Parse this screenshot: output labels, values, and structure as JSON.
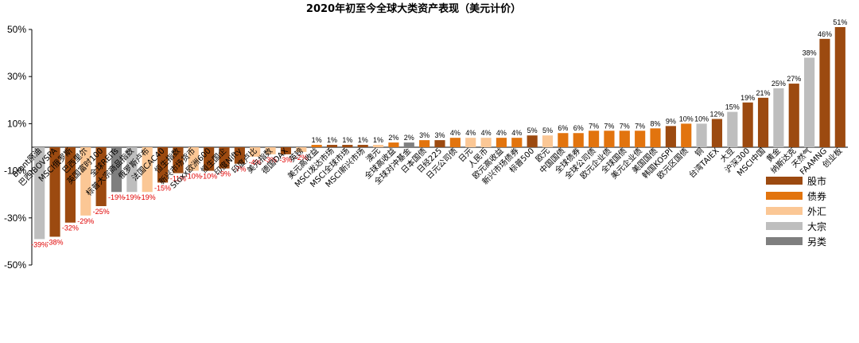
{
  "chart_data": {
    "type": "bar",
    "title": "2020年初至今全球大类资产表现（美元计价）",
    "ylim": [
      -50,
      50
    ],
    "yticks": [
      "50%",
      "30%",
      "10%",
      "-10%",
      "-30%",
      "-50%"
    ],
    "ytick_values": [
      50,
      30,
      10,
      -10,
      -30,
      -50
    ],
    "categories": [
      "Brent原油",
      "巴西IBOVSPA",
      "MSCI俄罗斯",
      "巴西里尔",
      "英国富时100",
      "全球REITs",
      "标普大宗商品指数",
      "俄罗斯卢布",
      "法国CAC40",
      "恒生指数",
      "新兴市场货币",
      "Stoxx欧洲600",
      "恒生国企",
      "印度Nifty",
      "印度卢比",
      "美元指数",
      "德国DAX",
      "英镑",
      "美元高收益",
      "MSCI发达市场",
      "MSCI全球市场",
      "MSCI新兴市场",
      "澳元",
      "全球高收益",
      "全球对冲基金",
      "日本国债",
      "日经225",
      "日元公司债",
      "日元",
      "人民币",
      "欧元高收益",
      "新兴市场债券",
      "标普500",
      "欧元",
      "中国国债",
      "全球债券",
      "全球公司债",
      "欧元企业债",
      "全球国债",
      "美元企业债",
      "美国国债",
      "韩国KOSPI",
      "欧元区国债",
      "铜",
      "台湾TAIEX",
      "大豆",
      "沪深300",
      "MSCI中国",
      "黄金",
      "纳斯达克",
      "天然气",
      "FAAMNG",
      "创业板"
    ],
    "values": [
      -39,
      -38,
      -32,
      -29,
      -25,
      -19,
      -19,
      -19,
      -15,
      -11,
      -10,
      -10,
      -9,
      -7,
      -4,
      -3,
      -3,
      -2,
      1,
      1,
      1,
      1,
      1,
      2,
      2,
      3,
      3,
      4,
      4,
      4,
      4,
      4,
      5,
      5,
      6,
      6,
      7,
      7,
      7,
      7,
      8,
      9,
      10,
      10,
      12,
      15,
      19,
      21,
      25,
      27,
      38,
      46,
      51
    ],
    "data_labels": [
      "-39%",
      "-38%",
      "-32%",
      "-29%",
      "-25%",
      "-19%",
      "-19%",
      "-19%",
      "-15%",
      "-11%",
      "-10%",
      "-10%",
      "-9%",
      "-7%",
      "-4%",
      "-3%",
      "-3%",
      "-2%",
      "1%",
      "1%",
      "1%",
      "1%",
      "1%",
      "2%",
      "2%",
      "3%",
      "3%",
      "4%",
      "4%",
      "4%",
      "4%",
      "4%",
      "5%",
      "5%",
      "6%",
      "6%",
      "7%",
      "7%",
      "7%",
      "7%",
      "8%",
      "9%",
      "10%",
      "10%",
      "12%",
      "15%",
      "19%",
      "21%",
      "25%",
      "27%",
      "38%",
      "46%",
      "51%"
    ],
    "asset_class": [
      "大宗",
      "股市",
      "股市",
      "外汇",
      "股市",
      "另类",
      "大宗",
      "外汇",
      "股市",
      "股市",
      "外汇",
      "股市",
      "股市",
      "股市",
      "外汇",
      "外汇",
      "股市",
      "外汇",
      "债券",
      "股市",
      "股市",
      "股市",
      "外汇",
      "债券",
      "另类",
      "债券",
      "股市",
      "债券",
      "外汇",
      "外汇",
      "债券",
      "债券",
      "股市",
      "外汇",
      "债券",
      "债券",
      "债券",
      "债券",
      "债券",
      "债券",
      "债券",
      "股市",
      "债券",
      "大宗",
      "股市",
      "大宗",
      "股市",
      "股市",
      "大宗",
      "股市",
      "大宗",
      "股市",
      "股市"
    ],
    "legend": [
      {
        "name": "股市",
        "color": "#9C4A10"
      },
      {
        "name": "债券",
        "color": "#E2740E"
      },
      {
        "name": "外汇",
        "color": "#FBC795"
      },
      {
        "name": "大宗",
        "color": "#BEBEBE"
      },
      {
        "name": "另类",
        "color": "#7F7F7F"
      }
    ],
    "legend_position": "right",
    "negative_label_color": "#E00000",
    "positive_label_color": "#000000",
    "grid": false
  }
}
